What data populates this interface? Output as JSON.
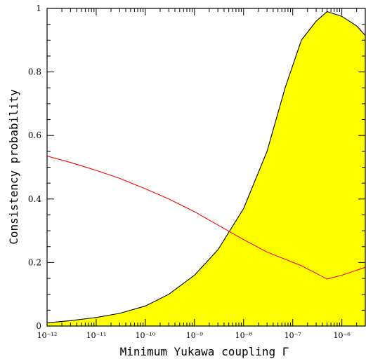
{
  "chart_data": {
    "type": "area",
    "title": "",
    "xlabel": "Minimum Yukawa coupling Γ",
    "ylabel": "Consistency probability",
    "x_scale": "log",
    "xlim": [
      1e-12,
      3e-06
    ],
    "ylim": [
      0,
      1
    ],
    "x_tick_labels": [
      "10⁻¹²",
      "10⁻¹¹",
      "10⁻¹⁰",
      "10⁻⁹",
      "10⁻⁸",
      "10⁻⁷",
      "10⁻⁶"
    ],
    "x_tick_values": [
      1e-12,
      1e-11,
      1e-10,
      1e-09,
      1e-08,
      1e-07,
      1e-06
    ],
    "y_tick_labels": [
      "0",
      "0.2",
      "0.4",
      "0.6",
      "0.8",
      "1"
    ],
    "y_tick_values": [
      0,
      0.2,
      0.4,
      0.6,
      0.8,
      1
    ],
    "grid": false,
    "series": [
      {
        "style": "filled-area",
        "fill": "#ffff00",
        "stroke": "#000000",
        "points": [
          [
            1e-12,
            0.01
          ],
          [
            3e-12,
            0.017
          ],
          [
            1e-11,
            0.027
          ],
          [
            3e-11,
            0.04
          ],
          [
            1e-10,
            0.063
          ],
          [
            3e-10,
            0.1
          ],
          [
            1e-09,
            0.16
          ],
          [
            3e-09,
            0.24
          ],
          [
            1e-08,
            0.37
          ],
          [
            3e-08,
            0.55
          ],
          [
            7e-08,
            0.75
          ],
          [
            1.5e-07,
            0.9
          ],
          [
            3e-07,
            0.96
          ],
          [
            5e-07,
            0.99
          ],
          [
            1e-06,
            0.975
          ],
          [
            2e-06,
            0.945
          ],
          [
            3e-06,
            0.915
          ]
        ]
      },
      {
        "style": "line",
        "stroke": "#ff0000",
        "points": [
          [
            1e-12,
            0.535
          ],
          [
            3e-12,
            0.515
          ],
          [
            1e-11,
            0.49
          ],
          [
            3e-11,
            0.465
          ],
          [
            1e-10,
            0.432
          ],
          [
            3e-10,
            0.4
          ],
          [
            1e-09,
            0.36
          ],
          [
            3e-09,
            0.318
          ],
          [
            1e-08,
            0.272
          ],
          [
            3e-08,
            0.233
          ],
          [
            1.5e-07,
            0.19
          ],
          [
            5e-07,
            0.148
          ],
          [
            1e-06,
            0.16
          ],
          [
            3e-06,
            0.185
          ]
        ]
      }
    ]
  }
}
